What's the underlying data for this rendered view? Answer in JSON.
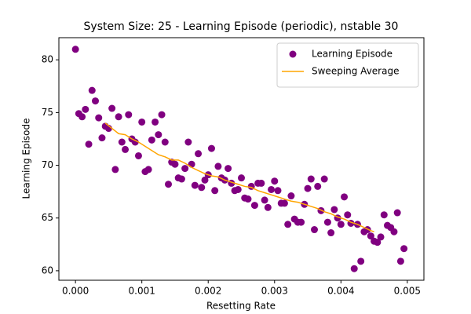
{
  "chart_data": {
    "type": "scatter",
    "title": "System Size: 25 - Learning Episode (periodic), nstable 30",
    "x_label": "Resetting Rate",
    "y_label": "Learning Episode",
    "xlim": [
      -0.00025,
      0.00525
    ],
    "ylim": [
      59.1,
      82.1
    ],
    "xticks": [
      {
        "value": 0,
        "label": "0.000"
      },
      {
        "value": 0.001,
        "label": "0.001"
      },
      {
        "value": 0.002,
        "label": "0.002"
      },
      {
        "value": 0.003,
        "label": "0.003"
      },
      {
        "value": 0.004,
        "label": "0.004"
      },
      {
        "value": 0.005,
        "label": "0.005"
      }
    ],
    "yticks": [
      60,
      65,
      70,
      75,
      80
    ],
    "grid": false,
    "legend": "upper right",
    "series": [
      {
        "name": "Learning Episode",
        "type": "scatter",
        "color": "#800080",
        "x": [
          0,
          5e-05,
          0.0001,
          0.00015,
          0.0002,
          0.00025,
          0.0003,
          0.00035,
          0.0004,
          0.00045,
          0.0005,
          0.00055,
          0.0006,
          0.00065,
          0.0007,
          0.00075,
          0.0008,
          0.00085,
          0.0009,
          0.00095,
          0.001,
          0.00105,
          0.0011,
          0.00115,
          0.0012,
          0.00125,
          0.0013,
          0.00135,
          0.0014,
          0.00145,
          0.0015,
          0.00155,
          0.0016,
          0.00165,
          0.0017,
          0.00175,
          0.0018,
          0.00185,
          0.0019,
          0.00195,
          0.002,
          0.00205,
          0.0021,
          0.00215,
          0.0022,
          0.00225,
          0.0023,
          0.00235,
          0.0024,
          0.00245,
          0.0025,
          0.00255,
          0.0026,
          0.00265,
          0.0027,
          0.00275,
          0.0028,
          0.00285,
          0.0029,
          0.00295,
          0.003,
          0.00305,
          0.0031,
          0.00315,
          0.0032,
          0.00325,
          0.0033,
          0.00335,
          0.0034,
          0.00345,
          0.0035,
          0.00355,
          0.0036,
          0.00365,
          0.0037,
          0.00375,
          0.0038,
          0.00385,
          0.0039,
          0.00395,
          0.004,
          0.00405,
          0.0041,
          0.00415,
          0.0042,
          0.00425,
          0.0043,
          0.00435,
          0.0044,
          0.00445,
          0.0045,
          0.00455,
          0.0046,
          0.00465,
          0.0047,
          0.00475,
          0.0048,
          0.00485,
          0.0049,
          0.00495
        ],
        "values": [
          81.0,
          74.9,
          74.6,
          75.3,
          72.0,
          77.1,
          76.1,
          74.5,
          72.6,
          73.7,
          73.5,
          75.4,
          69.6,
          74.6,
          72.2,
          71.5,
          74.8,
          72.5,
          72.2,
          70.9,
          74.1,
          69.4,
          69.6,
          72.4,
          74.1,
          72.9,
          74.8,
          72.2,
          68.2,
          70.3,
          70.1,
          68.8,
          68.7,
          69.7,
          72.2,
          70.1,
          68.1,
          71.1,
          67.9,
          68.6,
          69.1,
          71.6,
          67.6,
          69.9,
          68.8,
          68.6,
          69.7,
          68.3,
          67.6,
          67.7,
          68.8,
          66.9,
          66.8,
          68.0,
          66.2,
          68.3,
          68.3,
          66.7,
          66.0,
          67.7,
          68.5,
          67.6,
          66.4,
          66.4,
          64.4,
          67.1,
          64.9,
          64.6,
          64.6,
          66.3,
          67.8,
          68.7,
          63.9,
          68.0,
          65.7,
          68.7,
          64.6,
          63.6,
          65.8,
          65.0,
          64.4,
          67.0,
          65.3,
          64.5,
          60.2,
          64.4,
          60.9,
          63.7,
          63.9,
          63.3,
          62.8,
          62.7,
          63.2,
          65.3,
          64.3,
          64.1,
          63.7,
          65.5,
          60.9,
          62.1
        ]
      },
      {
        "name": "Sweeping Average",
        "type": "line",
        "color": "#ffa500",
        "x": [
          0.00045,
          0.00055,
          0.00065,
          0.00075,
          0.00085,
          0.00095,
          0.00105,
          0.00115,
          0.00125,
          0.00135,
          0.00145,
          0.00155,
          0.00165,
          0.00175,
          0.00185,
          0.00195,
          0.00205,
          0.00215,
          0.00225,
          0.00235,
          0.00245,
          0.00255,
          0.00265,
          0.00275,
          0.00285,
          0.00295,
          0.00305,
          0.00315,
          0.00325,
          0.00335,
          0.00345,
          0.00355,
          0.00365,
          0.00375,
          0.00385,
          0.00395,
          0.00405,
          0.00415,
          0.00425,
          0.00435,
          0.00445,
          0.0045
        ],
        "values": [
          74.0,
          73.5,
          73.0,
          72.9,
          72.5,
          72.2,
          71.8,
          71.4,
          71.0,
          70.8,
          70.5,
          70.5,
          70.2,
          69.8,
          69.5,
          69.2,
          69.0,
          68.9,
          68.6,
          68.4,
          68.2,
          68.0,
          67.9,
          67.6,
          67.4,
          67.2,
          67.0,
          66.8,
          66.6,
          66.5,
          66.3,
          66.1,
          65.9,
          65.6,
          65.4,
          65.1,
          64.9,
          64.6,
          64.4,
          64.1,
          63.8,
          63.7
        ]
      }
    ]
  }
}
